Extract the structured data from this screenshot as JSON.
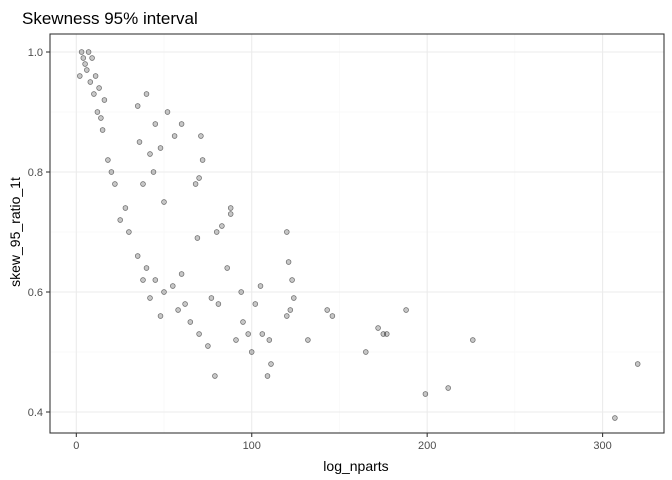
{
  "chart_data": {
    "type": "scatter",
    "title": "Skewness 95% interval",
    "xlabel": "log_nparts",
    "ylabel": "skew_95_ratio_1t",
    "xlim": [
      -15,
      335
    ],
    "ylim": [
      0.365,
      1.03
    ],
    "x_ticks": [
      0,
      100,
      200,
      300
    ],
    "y_ticks": [
      0.4,
      0.6,
      0.8,
      1.0
    ],
    "x_tick_labels": [
      "0",
      "100",
      "200",
      "300"
    ],
    "y_tick_labels": [
      "0.4",
      "0.6",
      "0.8",
      "1.0"
    ],
    "grid": true,
    "point_alpha": 0.25,
    "point_color": "#000000",
    "points": [
      [
        307,
        0.39
      ],
      [
        320,
        0.48
      ],
      [
        226,
        0.52
      ],
      [
        212,
        0.44
      ],
      [
        199,
        0.43
      ],
      [
        188,
        0.57
      ],
      [
        172,
        0.54
      ],
      [
        175,
        0.53
      ],
      [
        177,
        0.53
      ],
      [
        165,
        0.5
      ],
      [
        146,
        0.56
      ],
      [
        143,
        0.57
      ],
      [
        132,
        0.52
      ],
      [
        124,
        0.59
      ],
      [
        122,
        0.57
      ],
      [
        120,
        0.56
      ],
      [
        121,
        0.65
      ],
      [
        120,
        0.7
      ],
      [
        123,
        0.62
      ],
      [
        109,
        0.46
      ],
      [
        110,
        0.52
      ],
      [
        111,
        0.48
      ],
      [
        106,
        0.53
      ],
      [
        105,
        0.61
      ],
      [
        102,
        0.58
      ],
      [
        100,
        0.5
      ],
      [
        98,
        0.53
      ],
      [
        95,
        0.55
      ],
      [
        94,
        0.6
      ],
      [
        91,
        0.52
      ],
      [
        88,
        0.74
      ],
      [
        88,
        0.73
      ],
      [
        86,
        0.64
      ],
      [
        83,
        0.71
      ],
      [
        81,
        0.58
      ],
      [
        79,
        0.46
      ],
      [
        80,
        0.7
      ],
      [
        77,
        0.59
      ],
      [
        72,
        0.82
      ],
      [
        71,
        0.86
      ],
      [
        70,
        0.79
      ],
      [
        68,
        0.78
      ],
      [
        69,
        0.69
      ],
      [
        60,
        0.88
      ],
      [
        56,
        0.86
      ],
      [
        52,
        0.9
      ],
      [
        48,
        0.84
      ],
      [
        45,
        0.88
      ],
      [
        42,
        0.83
      ],
      [
        40,
        0.93
      ],
      [
        44,
        0.8
      ],
      [
        50,
        0.75
      ],
      [
        38,
        0.78
      ],
      [
        36,
        0.85
      ],
      [
        35,
        0.91
      ],
      [
        60,
        0.63
      ],
      [
        55,
        0.61
      ],
      [
        50,
        0.6
      ],
      [
        45,
        0.62
      ],
      [
        40,
        0.64
      ],
      [
        35,
        0.66
      ],
      [
        30,
        0.7
      ],
      [
        65,
        0.55
      ],
      [
        70,
        0.53
      ],
      [
        75,
        0.51
      ],
      [
        62,
        0.58
      ],
      [
        58,
        0.57
      ],
      [
        48,
        0.56
      ],
      [
        42,
        0.59
      ],
      [
        38,
        0.62
      ],
      [
        25,
        0.72
      ],
      [
        28,
        0.74
      ],
      [
        22,
        0.78
      ],
      [
        18,
        0.82
      ],
      [
        20,
        0.8
      ],
      [
        15,
        0.87
      ],
      [
        12,
        0.9
      ],
      [
        10,
        0.93
      ],
      [
        8,
        0.95
      ],
      [
        6,
        0.97
      ],
      [
        4,
        0.99
      ],
      [
        2,
        0.96
      ],
      [
        3,
        1.0
      ],
      [
        5,
        0.98
      ],
      [
        7,
        1.0
      ],
      [
        9,
        0.99
      ],
      [
        11,
        0.96
      ],
      [
        13,
        0.94
      ],
      [
        16,
        0.92
      ],
      [
        14,
        0.89
      ]
    ]
  }
}
